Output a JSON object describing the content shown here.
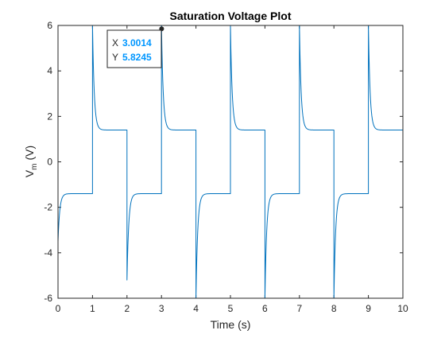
{
  "chart_data": {
    "type": "line",
    "title": "Saturation Voltage Plot",
    "xlabel": "Time (s)",
    "ylabel_main": "V",
    "ylabel_sub": "m",
    "ylabel_unit": "(V)",
    "xlim": [
      0,
      10
    ],
    "ylim": [
      -6,
      6
    ],
    "xticks": [
      0,
      1,
      2,
      3,
      4,
      5,
      6,
      7,
      8,
      9,
      10
    ],
    "yticks": [
      -6,
      -4,
      -2,
      0,
      2,
      4,
      6
    ],
    "grid": false,
    "line_color": "#0072bd",
    "series": [
      {
        "segments": [
          {
            "t0": 0,
            "t1": 1,
            "level": -1.4,
            "start": -3.5
          },
          {
            "t0": 1,
            "t1": 2,
            "level": 1.4,
            "start": 6.0
          },
          {
            "t0": 2,
            "t1": 3,
            "level": -1.4,
            "start": -5.2
          },
          {
            "t0": 3,
            "t1": 4,
            "level": 1.4,
            "start": 6.0
          },
          {
            "t0": 4,
            "t1": 5,
            "level": -1.4,
            "start": -6.0
          },
          {
            "t0": 5,
            "t1": 6,
            "level": 1.4,
            "start": 6.0
          },
          {
            "t0": 6,
            "t1": 7,
            "level": -1.4,
            "start": -6.0
          },
          {
            "t0": 7,
            "t1": 8,
            "level": 1.4,
            "start": 6.0
          },
          {
            "t0": 8,
            "t1": 9,
            "level": -1.4,
            "start": -6.0
          },
          {
            "t0": 9,
            "t1": 10,
            "level": 1.4,
            "start": 6.0
          }
        ]
      }
    ],
    "datatip": {
      "x_label": "X",
      "x_value": "3.0014",
      "y_label": "Y",
      "y_value": "5.8245",
      "value_color": "#0096ff"
    }
  }
}
